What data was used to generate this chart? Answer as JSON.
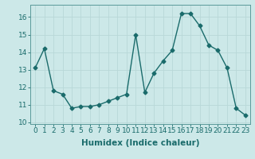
{
  "x": [
    0,
    1,
    2,
    3,
    4,
    5,
    6,
    7,
    8,
    9,
    10,
    11,
    12,
    13,
    14,
    15,
    16,
    17,
    18,
    19,
    20,
    21,
    22,
    23
  ],
  "y": [
    13.1,
    14.2,
    11.8,
    11.6,
    10.8,
    10.9,
    10.9,
    11.0,
    11.2,
    11.4,
    11.6,
    15.0,
    11.7,
    12.8,
    13.5,
    14.1,
    16.2,
    16.2,
    15.5,
    14.4,
    14.1,
    13.1,
    10.8,
    10.4
  ],
  "line_color": "#1a6b6b",
  "marker": "D",
  "markersize": 2.5,
  "linewidth": 1.0,
  "xlabel": "Humidex (Indice chaleur)",
  "xlim": [
    -0.5,
    23.5
  ],
  "ylim": [
    9.9,
    16.7
  ],
  "yticks": [
    10,
    11,
    12,
    13,
    14,
    15,
    16
  ],
  "xticks": [
    0,
    1,
    2,
    3,
    4,
    5,
    6,
    7,
    8,
    9,
    10,
    11,
    12,
    13,
    14,
    15,
    16,
    17,
    18,
    19,
    20,
    21,
    22,
    23
  ],
  "grid_color": "#b8d8d8",
  "bg_color": "#cce8e8",
  "tick_fontsize": 6.5,
  "xlabel_fontsize": 7.5,
  "spine_color": "#5a9a9a"
}
